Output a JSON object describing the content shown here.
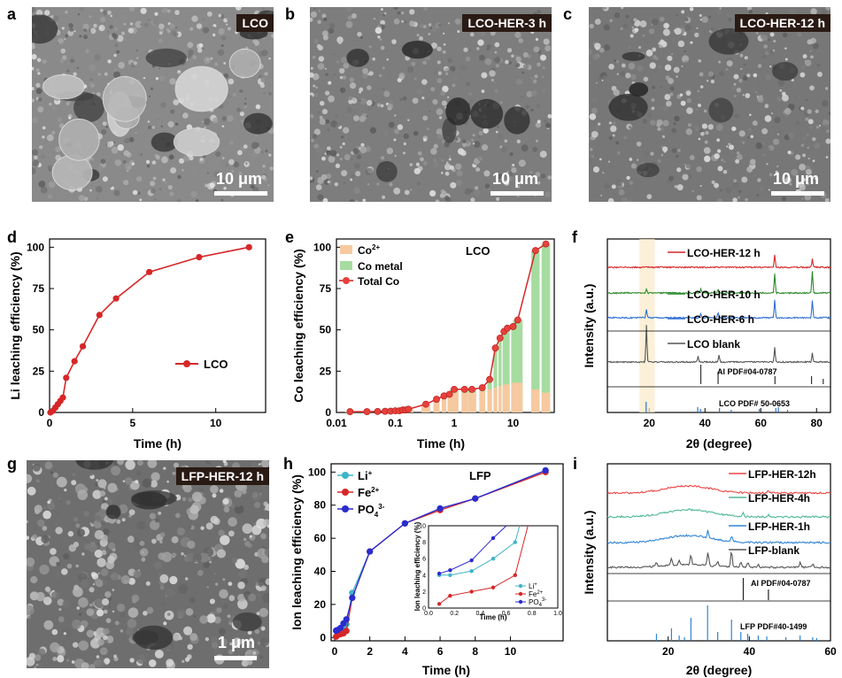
{
  "labels": {
    "a": "a",
    "b": "b",
    "c": "c",
    "d": "d",
    "e": "e",
    "f": "f",
    "g": "g",
    "h": "h",
    "i": "i"
  },
  "sem": {
    "a": {
      "tag": "LCO",
      "scale": "10 μm",
      "bg": "#8a8a8a"
    },
    "b": {
      "tag": "LCO-HER-3 h",
      "scale": "10 μm",
      "bg": "#7d7d7d"
    },
    "c": {
      "tag": "LCO-HER-12 h",
      "scale": "10 μm",
      "bg": "#777777"
    },
    "g": {
      "tag": "LFP-HER-12 h",
      "scale": "1 μm",
      "bg": "#6e6e6e"
    }
  },
  "colors": {
    "red": "#d62728",
    "redFill": "#e8413c",
    "orange": "#f6c9a0",
    "green": "#a6dca0",
    "blue": "#2f6fd6",
    "darkgreen": "#2a8a2a",
    "gray": "#555555",
    "teal": "#3fb4c9",
    "navy": "#2b2bcf"
  },
  "chart_data": [
    {
      "id": "d",
      "type": "line",
      "xlabel": "Time (h)",
      "ylabel": "Li leaching efficiency (%)",
      "xlim": [
        0,
        13
      ],
      "ylim": [
        0,
        105
      ],
      "xticks": [
        0,
        5,
        10
      ],
      "yticks": [
        0,
        25,
        50,
        75,
        100
      ],
      "legend": [
        "LCO"
      ],
      "series": [
        {
          "name": "LCO",
          "x": [
            0.05,
            0.2,
            0.35,
            0.5,
            0.65,
            0.8,
            1,
            1.5,
            2,
            3,
            4,
            6,
            9,
            12
          ],
          "y": [
            0,
            1,
            3,
            5,
            7,
            9,
            21,
            31,
            40,
            59,
            69,
            85,
            94,
            100
          ]
        }
      ]
    },
    {
      "id": "e",
      "type": "bar",
      "xlabel": "Time (h)",
      "ylabel": "Co leaching efficiency (%)",
      "xscale": "log",
      "xlim": [
        0.01,
        50
      ],
      "ylim": [
        0,
        105
      ],
      "xticks": [
        "0.01",
        "0.1",
        "1",
        "10"
      ],
      "yticks": [
        0,
        25,
        50,
        75,
        100
      ],
      "annotation": "LCO",
      "legend": [
        "Co2+",
        "Co metal",
        "Total Co"
      ],
      "x": [
        0.017,
        0.033,
        0.05,
        0.067,
        0.083,
        0.1,
        0.117,
        0.133,
        0.15,
        0.167,
        0.33,
        0.5,
        0.67,
        0.83,
        1,
        1.5,
        2,
        3,
        4,
        5,
        6,
        7,
        8,
        10,
        12,
        24,
        36
      ],
      "co2": [
        0.5,
        0.5,
        0.6,
        0.7,
        0.8,
        1,
        1,
        1.5,
        1.5,
        2,
        5,
        8,
        10,
        11,
        12,
        12,
        12,
        13,
        14,
        15,
        16,
        17,
        17,
        18,
        18,
        14,
        12
      ],
      "total": [
        0.5,
        0.5,
        0.6,
        0.7,
        0.8,
        1,
        1,
        1.5,
        1.5,
        2,
        5,
        8,
        10,
        11,
        14,
        14,
        14,
        15,
        20,
        39,
        45,
        49,
        51,
        52,
        56,
        98,
        102
      ]
    },
    {
      "id": "f",
      "type": "line",
      "xlabel": "2θ (degree)",
      "ylabel": "Intensity (a.u.)",
      "xlim": [
        5,
        85
      ],
      "xticks": [
        20,
        40,
        60,
        80
      ],
      "series": [
        {
          "name": "LCO-HER-12 h",
          "peaks": [
            [
              65,
              14
            ],
            [
              78.5,
              10
            ]
          ]
        },
        {
          "name": "LCO-HER-10 h",
          "peaks": [
            [
              19,
              5
            ],
            [
              38.5,
              4
            ],
            [
              44.7,
              4
            ],
            [
              65,
              22
            ],
            [
              78.5,
              25
            ]
          ]
        },
        {
          "name": "LCO-HER-6 h",
          "peaks": [
            [
              19,
              10
            ],
            [
              38.5,
              4
            ],
            [
              44.7,
              6
            ],
            [
              65,
              20
            ],
            [
              78.5,
              20
            ]
          ]
        },
        {
          "name": "LCO blank",
          "peaks": [
            [
              19,
              42
            ],
            [
              37.5,
              6
            ],
            [
              45,
              8
            ],
            [
              65,
              16
            ],
            [
              78.5,
              10
            ]
          ]
        }
      ],
      "refs": [
        {
          "name": "Al PDF#04-0787",
          "lines": [
            38.5,
            44.7,
            65.1,
            78.2,
            82.4
          ]
        },
        {
          "name": "LCO PDF# 50-0653",
          "lines": [
            18.9,
            37.4,
            38.4,
            45.2,
            49.4,
            59.5,
            65.4,
            66.3,
            69.6
          ]
        }
      ]
    },
    {
      "id": "h",
      "type": "line",
      "xlabel": "Time (h)",
      "ylabel": "Ion leaching efficiency (%)",
      "xlim": [
        -0.2,
        13
      ],
      "ylim": [
        -2,
        105
      ],
      "xticks": [
        0,
        2,
        4,
        6,
        8,
        10
      ],
      "yticks": [
        0,
        20,
        40,
        60,
        80,
        100
      ],
      "annotation": "LFP",
      "legend": [
        "Li+",
        "Fe2+",
        "PO43-"
      ],
      "series": [
        {
          "name": "Li+",
          "x": [
            0.083,
            0.167,
            0.333,
            0.5,
            0.67,
            1,
            2,
            4,
            6,
            8,
            12
          ],
          "y": [
            4,
            4,
            4.5,
            6,
            8,
            27,
            52,
            69,
            78,
            84,
            101
          ]
        },
        {
          "name": "Fe2+",
          "x": [
            0.083,
            0.167,
            0.333,
            0.5,
            0.67,
            1,
            2,
            4,
            6,
            8,
            12
          ],
          "y": [
            0.5,
            1.5,
            2,
            2.5,
            4,
            24,
            52,
            69,
            77,
            84,
            100
          ]
        },
        {
          "name": "PO43-",
          "x": [
            0.083,
            0.167,
            0.333,
            0.5,
            0.67,
            1,
            2,
            4,
            6,
            8,
            12
          ],
          "y": [
            4.2,
            4.6,
            5.8,
            8.5,
            11,
            24,
            52,
            69,
            78,
            84,
            101
          ]
        }
      ],
      "inset": {
        "xlabel": "Time (h)",
        "ylabel": "Ion leaching efficiency (%)",
        "xlim": [
          0,
          1
        ],
        "ylim": [
          0,
          10
        ],
        "xticks": [
          "0.0",
          "0.2",
          "0.4",
          "0.6",
          "0.8",
          "1.0"
        ],
        "yticks": [
          "0",
          "2",
          "4",
          "6",
          "8",
          "10"
        ]
      }
    },
    {
      "id": "i",
      "type": "line",
      "xlabel": "2θ (degree)",
      "ylabel": "Intensity (a.u.)",
      "xlim": [
        5,
        60
      ],
      "xticks": [
        20,
        40,
        60
      ],
      "series": [
        {
          "name": "LFP-HER-12h",
          "peaks": [
            [
              44.7,
              3
            ]
          ]
        },
        {
          "name": "LFP-HER-4h",
          "peaks": [
            [
              38.5,
              4
            ],
            [
              44.7,
              3
            ]
          ]
        },
        {
          "name": "LFP-HER-1h",
          "peaks": [
            [
              29.8,
              8
            ],
            [
              35.6,
              6
            ]
          ]
        },
        {
          "name": "LFP-blank",
          "peaks": [
            [
              17.1,
              5
            ],
            [
              20.8,
              8
            ],
            [
              22.7,
              6
            ],
            [
              25.6,
              12
            ],
            [
              29.8,
              16
            ],
            [
              32.2,
              6
            ],
            [
              35.6,
              18
            ],
            [
              37.9,
              5
            ],
            [
              39.6,
              5
            ],
            [
              42.2,
              4
            ],
            [
              52.5,
              5
            ],
            [
              55.6,
              4
            ]
          ]
        }
      ],
      "refs": [
        {
          "name": "Al PDF#04-0787",
          "lines": [
            38.5,
            44.7
          ]
        },
        {
          "name": "LFP PDF#40-1499",
          "lines": [
            17.1,
            20.8,
            22.7,
            24.0,
            25.6,
            29.7,
            32.2,
            35.6,
            37.9,
            39.6,
            42.2,
            44.3,
            49.0,
            52.5,
            55.6,
            56.6
          ]
        }
      ]
    }
  ]
}
